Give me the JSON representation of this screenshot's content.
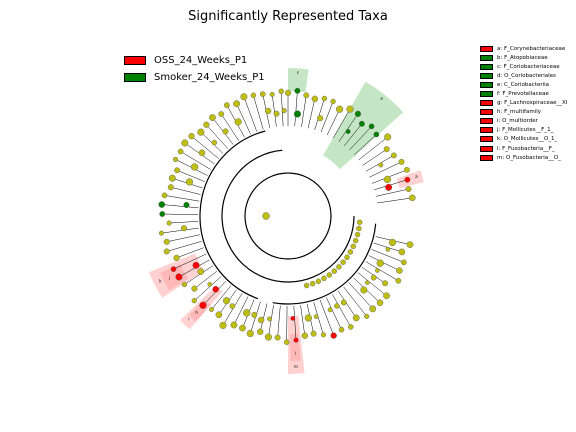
{
  "title": "Significantly Represented Taxa",
  "colors": {
    "red": "#ff0000",
    "green": "#008000",
    "node": "#bdbd12",
    "red_shade": "#ff9999",
    "green_shade": "#7ec87e"
  },
  "groups": [
    {
      "label": "OSS_24_Weeks_P1",
      "color": "#ff0000"
    },
    {
      "label": "Smoker_24_Weeks_P1",
      "color": "#008000"
    }
  ],
  "taxa_legend": [
    {
      "label": "a: F_Corynebacteriaceae",
      "color": "#ff0000"
    },
    {
      "label": "b: F_Atopobiaceae",
      "color": "#008000"
    },
    {
      "label": "c: F_Coriobacteriaceae",
      "color": "#008000"
    },
    {
      "label": "d: O_Coriobacteriales",
      "color": "#008000"
    },
    {
      "label": "e: C_Coriobacteriia",
      "color": "#008000"
    },
    {
      "label": "f: F_Prevotellaceae",
      "color": "#008000"
    },
    {
      "label": "g: F_Lachnospiraceae__XI",
      "color": "#ff0000"
    },
    {
      "label": "h: F_multifamily",
      "color": "#ff0000"
    },
    {
      "label": "i: O_multiorder",
      "color": "#ff0000"
    },
    {
      "label": "j: F_Mollicutes__F_1_",
      "color": "#ff0000"
    },
    {
      "label": "k: O_Mollicutes__O_1_",
      "color": "#ff0000"
    },
    {
      "label": "l: F_Fusobacteria__F_",
      "color": "#ff0000"
    },
    {
      "label": "m: O_Fusobacteria__O_",
      "color": "#ff0000"
    }
  ],
  "clade_labels": {
    "f": "f",
    "e": "e",
    "a": "a",
    "m": "m",
    "l": "l",
    "i": "i",
    "h": "h",
    "k": "k",
    "j": "j"
  }
}
